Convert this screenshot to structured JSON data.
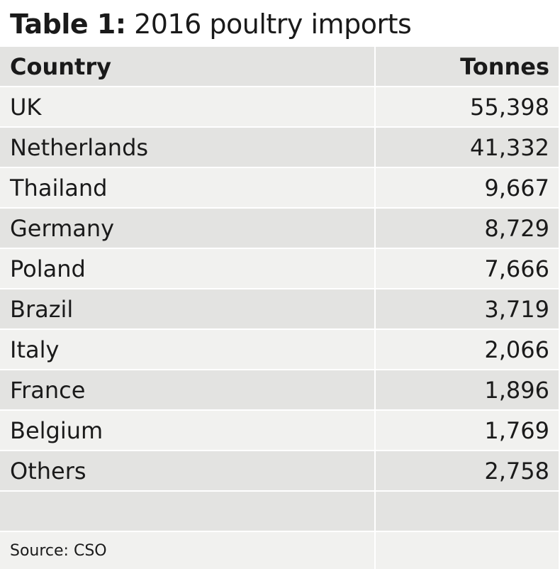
{
  "title": {
    "lead": "Table 1:",
    "rest": " 2016 poultry imports"
  },
  "table": {
    "headers": [
      "Country",
      "Tonnes"
    ],
    "rows": [
      [
        "UK",
        "55,398"
      ],
      [
        "Netherlands",
        "41,332"
      ],
      [
        "Thailand",
        "9,667"
      ],
      [
        "Germany",
        "8,729"
      ],
      [
        "Poland",
        "7,666"
      ],
      [
        "Brazil",
        "3,719"
      ],
      [
        "Italy",
        "2,066"
      ],
      [
        "France",
        "1,896"
      ],
      [
        "Belgium",
        "1,769"
      ],
      [
        "Others",
        "2,758"
      ]
    ],
    "source": "Source: CSO"
  }
}
